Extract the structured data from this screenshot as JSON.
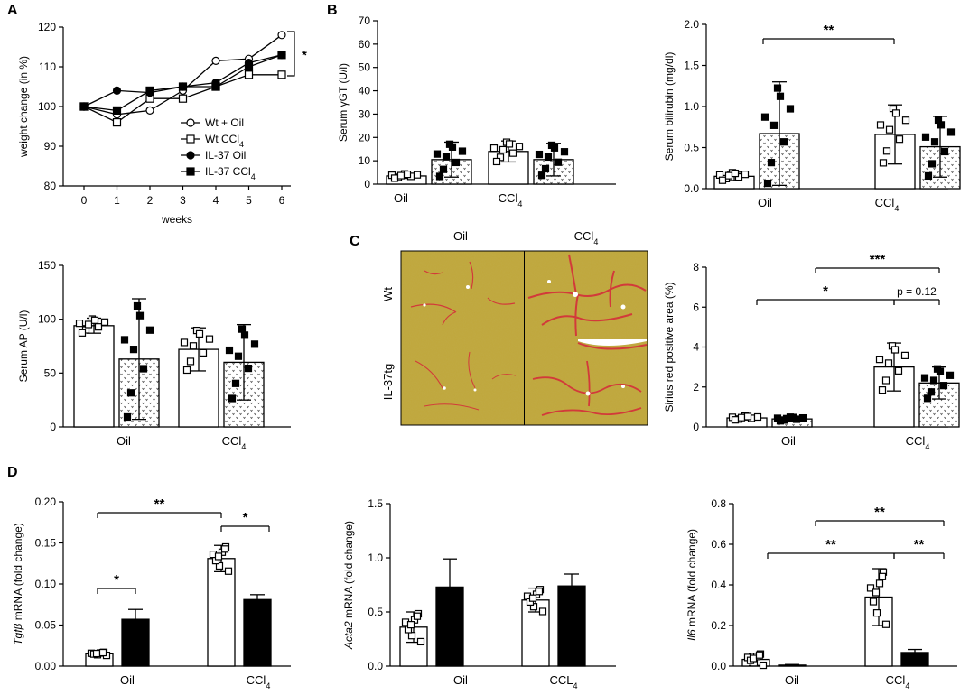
{
  "colors": {
    "axis": "#000000",
    "bar_open": "#ffffff",
    "bar_solid": "#000000",
    "stain_bg": "#bfa63a",
    "stain_red": "#d23a3a"
  },
  "panel_labels": {
    "a": "A",
    "b": "B",
    "c": "C",
    "d": "D"
  },
  "micro": {
    "col_oil": "Oil",
    "col_ccl4": "CCl",
    "row_wt": "Wt",
    "row_il37": "IL-37tg",
    "sub4": "4"
  },
  "chart_data": [
    {
      "id": "weight",
      "type": "line",
      "xlabel": "weeks",
      "ylabel": "weight change (in %)",
      "x": [
        0,
        1,
        2,
        3,
        4,
        5,
        6
      ],
      "xlim": [
        0,
        6
      ],
      "ylim": [
        80,
        120
      ],
      "yticks": [
        "80",
        "90",
        "100",
        "110",
        "120"
      ],
      "xticks": [
        "0",
        "1",
        "2",
        "3",
        "4",
        "5",
        "6"
      ],
      "series": [
        {
          "name": "Wt + Oil",
          "marker": "open-circle",
          "values": [
            100,
            98,
            99,
            104,
            111.5,
            112,
            118
          ]
        },
        {
          "name": "Wt CCl",
          "sub": "4",
          "marker": "open-square",
          "values": [
            100,
            96,
            102,
            102,
            105,
            108,
            108
          ]
        },
        {
          "name": "IL-37 Oil",
          "marker": "filled-circle",
          "values": [
            100,
            104,
            103.5,
            105,
            106,
            111,
            113
          ]
        },
        {
          "name": "IL-37 CCl",
          "sub": "4",
          "marker": "filled-square",
          "values": [
            100,
            99,
            104,
            105,
            105,
            110,
            113
          ]
        }
      ],
      "significance": "*"
    },
    {
      "id": "ggt",
      "type": "bar",
      "ylabel": "Serum γGT (U/l)",
      "ylim": [
        0,
        70
      ],
      "yticks": [
        "0",
        "10",
        "20",
        "30",
        "40",
        "50",
        "60",
        "70"
      ],
      "categories": [
        "Oil",
        "CCl"
      ],
      "cat_sub": [
        "",
        "4"
      ],
      "bars": [
        {
          "value": 3.5,
          "error": 1,
          "pattern": "open"
        },
        {
          "value": 10.5,
          "error": 7.5,
          "pattern": "dots"
        },
        {
          "value": 14,
          "error": 4.5,
          "pattern": "open"
        },
        {
          "value": 10.5,
          "error": 7,
          "pattern": "dots"
        }
      ]
    },
    {
      "id": "bilirubin",
      "type": "bar",
      "ylabel": "Serum bilirubin (mg/dl)",
      "ylim": [
        0,
        2.0
      ],
      "yticks": [
        "0.0",
        "0.5",
        "1.0",
        "1.5",
        "2.0"
      ],
      "categories": [
        "Oil",
        "CCl"
      ],
      "cat_sub": [
        "",
        "4"
      ],
      "bars": [
        {
          "value": 0.15,
          "error": 0.05,
          "pattern": "open"
        },
        {
          "value": 0.67,
          "error": 0.63,
          "pattern": "dots"
        },
        {
          "value": 0.66,
          "error": 0.36,
          "pattern": "open"
        },
        {
          "value": 0.51,
          "error": 0.37,
          "pattern": "dots"
        }
      ],
      "significance": [
        "**"
      ]
    },
    {
      "id": "ap",
      "type": "bar",
      "ylabel": "Serum AP (U/l)",
      "ylim": [
        0,
        150
      ],
      "yticks": [
        "0",
        "50",
        "100",
        "150"
      ],
      "categories": [
        "Oil",
        "CCl"
      ],
      "cat_sub": [
        "",
        "4"
      ],
      "bars": [
        {
          "value": 94,
          "error": 7,
          "pattern": "open"
        },
        {
          "value": 63,
          "error": 56,
          "pattern": "dots"
        },
        {
          "value": 72,
          "error": 20,
          "pattern": "open"
        },
        {
          "value": 60,
          "error": 35,
          "pattern": "dots"
        }
      ]
    },
    {
      "id": "sirius",
      "type": "bar",
      "ylabel": "Sirius red positive area (%)",
      "ylim": [
        0,
        8
      ],
      "yticks": [
        "0",
        "2",
        "4",
        "6",
        "8"
      ],
      "categories": [
        "Oil",
        "CCl"
      ],
      "cat_sub": [
        "",
        "4"
      ],
      "bars": [
        {
          "value": 0.45,
          "error": 0.1,
          "pattern": "open"
        },
        {
          "value": 0.4,
          "error": 0.1,
          "pattern": "dots"
        },
        {
          "value": 3.0,
          "error": 1.2,
          "pattern": "open"
        },
        {
          "value": 2.2,
          "error": 0.8,
          "pattern": "dots"
        }
      ],
      "significance": [
        "***",
        "*",
        "p = 0.12"
      ]
    },
    {
      "id": "tgfb",
      "type": "bar",
      "ylabel_italic": "Tgfβ",
      "ylabel": " mRNA (fold change)",
      "ylim": [
        0,
        0.2
      ],
      "yticks": [
        "0.00",
        "0.05",
        "0.10",
        "0.15",
        "0.20"
      ],
      "categories": [
        "Oil",
        "CCl"
      ],
      "cat_sub": [
        "",
        "4"
      ],
      "bars": [
        {
          "value": 0.015,
          "error": 0.002,
          "pattern": "open"
        },
        {
          "value": 0.057,
          "error": 0.012,
          "pattern": "solid"
        },
        {
          "value": 0.131,
          "error": 0.016,
          "pattern": "open"
        },
        {
          "value": 0.081,
          "error": 0.006,
          "pattern": "solid"
        }
      ],
      "significance": [
        "**",
        "*",
        "*"
      ]
    },
    {
      "id": "acta2",
      "type": "bar",
      "ylabel_italic": "Acta2",
      "ylabel": " mRNA (fold change)",
      "ylim": [
        0,
        1.5
      ],
      "yticks": [
        "0.0",
        "0.5",
        "1.0",
        "1.5"
      ],
      "categories": [
        "Oil",
        "CCL"
      ],
      "cat_sub": [
        "",
        "4"
      ],
      "bars": [
        {
          "value": 0.36,
          "error": 0.14,
          "pattern": "open"
        },
        {
          "value": 0.73,
          "error": 0.26,
          "pattern": "solid"
        },
        {
          "value": 0.61,
          "error": 0.11,
          "pattern": "open"
        },
        {
          "value": 0.74,
          "error": 0.11,
          "pattern": "solid"
        }
      ]
    },
    {
      "id": "il6",
      "type": "bar",
      "ylabel_italic": "Il6",
      "ylabel": " mRNA (fold change)",
      "ylim": [
        0,
        0.8
      ],
      "yticks": [
        "0.0",
        "0.2",
        "0.4",
        "0.6",
        "0.8"
      ],
      "categories": [
        "Oil",
        "CCl"
      ],
      "cat_sub": [
        "",
        "4"
      ],
      "bars": [
        {
          "value": 0.033,
          "error": 0.03,
          "pattern": "open"
        },
        {
          "value": 0.005,
          "error": 0.003,
          "pattern": "solid"
        },
        {
          "value": 0.34,
          "error": 0.14,
          "pattern": "open"
        },
        {
          "value": 0.067,
          "error": 0.015,
          "pattern": "solid"
        }
      ],
      "significance": [
        "**",
        "**",
        "**"
      ]
    }
  ]
}
